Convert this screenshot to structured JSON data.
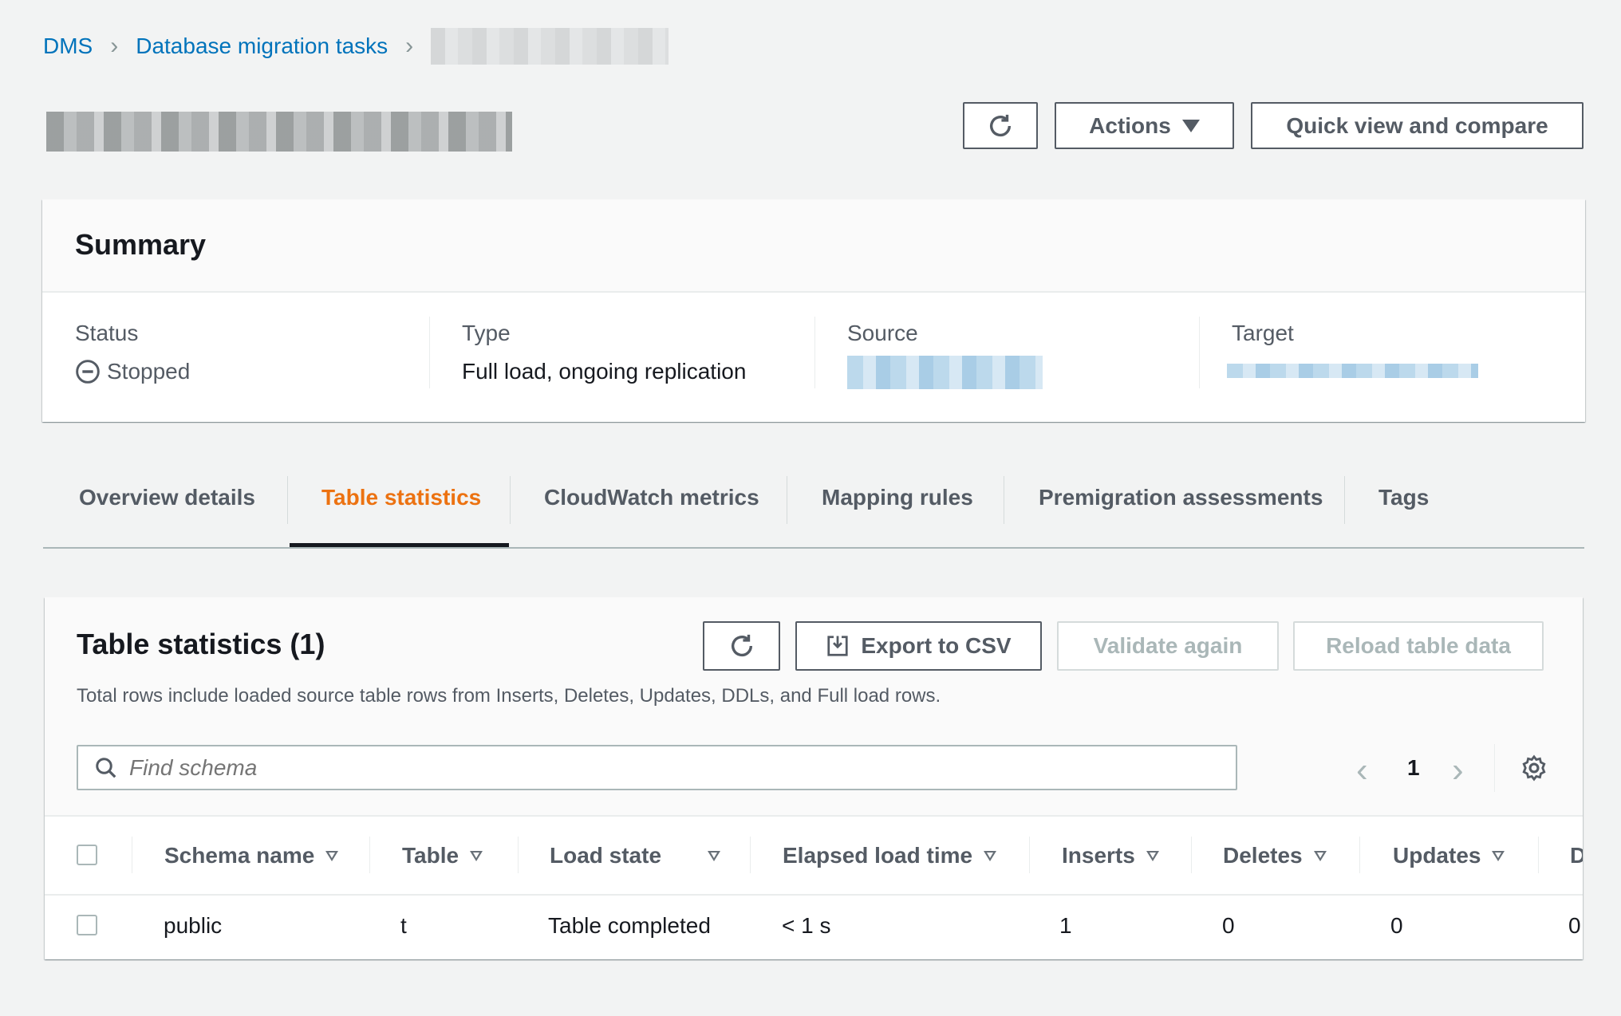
{
  "breadcrumb": {
    "items": [
      "DMS",
      "Database migration tasks"
    ]
  },
  "header": {
    "refresh_icon": "refresh-icon",
    "actions_label": "Actions",
    "quick_view_label": "Quick view and compare"
  },
  "summary": {
    "title": "Summary",
    "status_label": "Status",
    "status_value": "Stopped",
    "status_icon": "stopped-circle-icon",
    "type_label": "Type",
    "type_value": "Full load, ongoing replication",
    "source_label": "Source",
    "target_label": "Target"
  },
  "tabs": [
    {
      "label": "Overview details"
    },
    {
      "label": "Table statistics",
      "active": true
    },
    {
      "label": "CloudWatch metrics"
    },
    {
      "label": "Mapping rules"
    },
    {
      "label": "Premigration assessments"
    },
    {
      "label": "Tags"
    }
  ],
  "table_stats": {
    "title": "Table statistics (1)",
    "export_label": "Export to CSV",
    "validate_label": "Validate again",
    "reload_label": "Reload table data",
    "description": "Total rows include loaded source table rows from Inserts, Deletes, Updates, DDLs, and Full load rows.",
    "search_placeholder": "Find schema",
    "page": "1",
    "columns": [
      "Schema name",
      "Table",
      "Load state",
      "Elapsed load time",
      "Inserts",
      "Deletes",
      "Updates",
      "D"
    ],
    "rows": [
      [
        "public",
        "t",
        "Table completed",
        "< 1 s",
        "1",
        "0",
        "0",
        "0"
      ]
    ]
  },
  "colors": {
    "accent": "#ec7211",
    "link": "#0073bb"
  }
}
